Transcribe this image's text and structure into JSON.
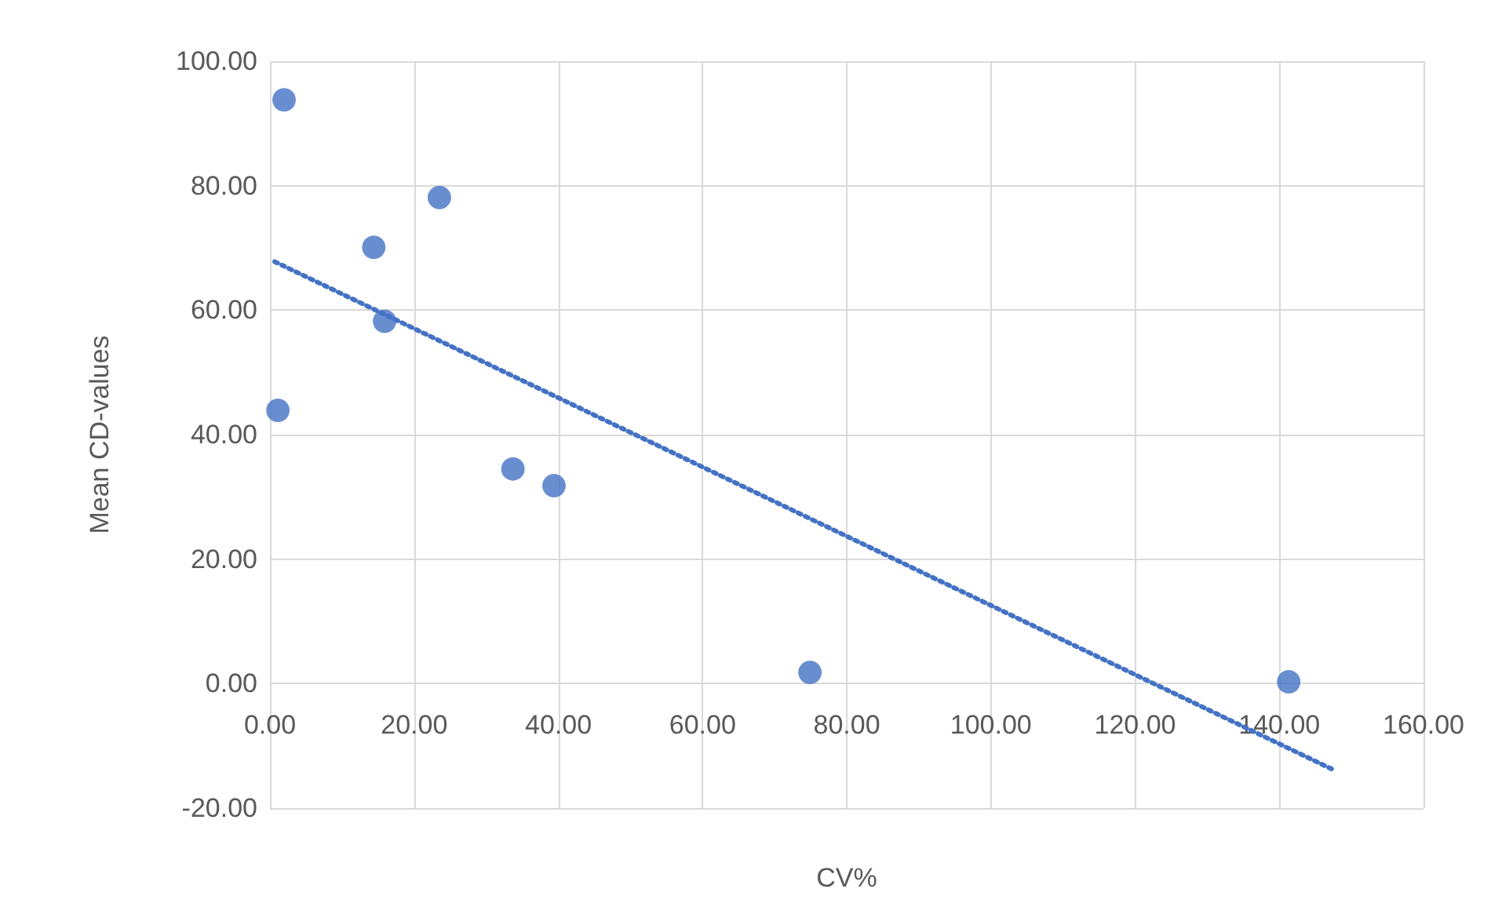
{
  "chart_data": {
    "type": "scatter",
    "xlabel": "CV%",
    "ylabel": "Mean CD-values",
    "x": [
      1.96,
      1.1,
      14.4,
      15.9,
      23.5,
      33.7,
      39.4,
      74.9,
      141.3
    ],
    "series": [
      {
        "color": "#4472c4",
        "values": [
          93.8,
          43.9,
          70.1,
          58.2,
          78.1,
          34.5,
          31.8,
          1.8,
          0.3
        ],
        "marker": "circle"
      },
      {
        "type": "line",
        "color": "#4472c4",
        "x": [
          0.65,
          147.6
        ],
        "values": [
          67.8,
          -13.9
        ],
        "line_style": "dotted",
        "marker": "none"
      }
    ],
    "xlim": [
      0,
      160
    ],
    "xticks": [
      {
        "value": 0,
        "label": "0.00"
      },
      {
        "value": 20,
        "label": "20.00"
      },
      {
        "value": 40,
        "label": "40.00"
      },
      {
        "value": 60,
        "label": "60.00"
      },
      {
        "value": 80,
        "label": "80.00"
      },
      {
        "value": 100,
        "label": "100.00"
      },
      {
        "value": 120,
        "label": "120.00"
      },
      {
        "value": 140,
        "label": "140.00"
      },
      {
        "value": 160,
        "label": "160.00"
      }
    ],
    "ylim": [
      -20,
      100
    ],
    "yticks": [
      {
        "value": -20,
        "label": "-20.00"
      },
      {
        "value": 0,
        "label": "0.00"
      },
      {
        "value": 20,
        "label": "20.00"
      },
      {
        "value": 40,
        "label": "40.00"
      },
      {
        "value": 60,
        "label": "60.00"
      },
      {
        "value": 80,
        "label": "80.00"
      },
      {
        "value": 100,
        "label": "100.00"
      }
    ],
    "grid": true
  }
}
